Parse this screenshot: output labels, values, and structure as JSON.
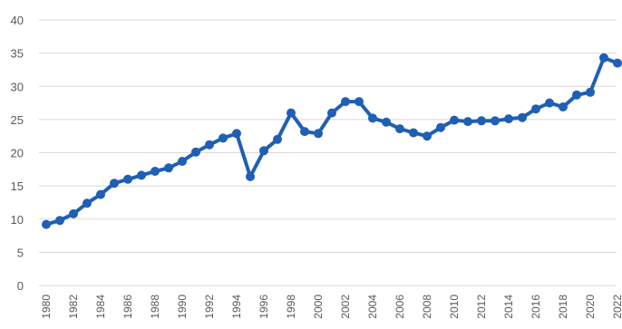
{
  "chart_data": {
    "type": "line",
    "x": [
      1980,
      1981,
      1982,
      1983,
      1984,
      1985,
      1986,
      1987,
      1988,
      1989,
      1990,
      1991,
      1992,
      1993,
      1994,
      1995,
      1996,
      1997,
      1998,
      1999,
      2000,
      2001,
      2002,
      2003,
      2004,
      2005,
      2006,
      2007,
      2008,
      2009,
      2010,
      2011,
      2012,
      2013,
      2014,
      2015,
      2016,
      2017,
      2018,
      2019,
      2020,
      2021,
      2022
    ],
    "x_tick_labels": [
      "1980",
      "1982",
      "1984",
      "1986",
      "1988",
      "1990",
      "1992",
      "1994",
      "1996",
      "1998",
      "2000",
      "2002",
      "2004",
      "2006",
      "2008",
      "2010",
      "2012",
      "2014",
      "2016",
      "2018",
      "2020",
      "2022"
    ],
    "y_tick_labels": [
      "0",
      "5",
      "10",
      "15",
      "20",
      "25",
      "30",
      "35",
      "40"
    ],
    "series": [
      {
        "values": [
          9.2,
          9.8,
          10.8,
          12.4,
          13.7,
          15.4,
          16.0,
          16.6,
          17.2,
          17.7,
          18.7,
          20.1,
          21.2,
          22.2,
          22.9,
          16.4,
          20.3,
          22.0,
          26.0,
          23.2,
          22.9,
          26.0,
          27.7,
          27.7,
          25.2,
          24.6,
          23.6,
          23.0,
          22.5,
          23.8,
          24.9,
          24.7,
          24.8,
          24.8,
          25.1,
          25.3,
          26.6,
          27.5,
          26.9,
          28.7,
          29.1,
          34.3,
          33.5
        ],
        "color": "#1f5fb4"
      }
    ],
    "xlabel": "",
    "ylabel": "",
    "ylim": [
      0,
      40
    ],
    "y_ticks": [
      0,
      5,
      10,
      15,
      20,
      25,
      30,
      35,
      40
    ],
    "grid": true,
    "legend": "none"
  }
}
